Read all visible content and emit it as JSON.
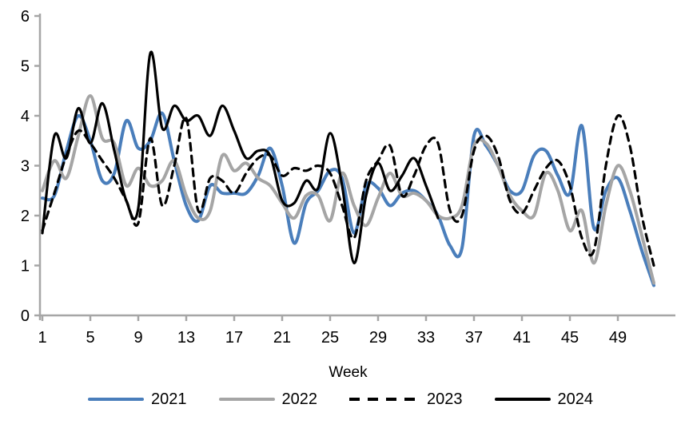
{
  "chart_data": {
    "type": "line",
    "title": "",
    "xlabel": "Week",
    "ylabel": "",
    "xlim": [
      1,
      52
    ],
    "ylim": [
      0,
      6
    ],
    "yticks": [
      0,
      1,
      2,
      3,
      4,
      5,
      6
    ],
    "xticks": [
      1,
      5,
      9,
      13,
      17,
      21,
      25,
      29,
      33,
      37,
      41,
      45,
      49
    ],
    "grid": false,
    "legend_position": "bottom",
    "axis_color": "#A6A6A6",
    "text_color": "#000000",
    "series": [
      {
        "name": "2021",
        "color": "#4A7EBB",
        "line_style": "solid",
        "stroke_width": 4,
        "start_week": 1,
        "values": [
          2.35,
          2.4,
          3.3,
          4.0,
          3.5,
          2.7,
          2.85,
          3.9,
          3.35,
          3.5,
          4.05,
          3.1,
          2.2,
          1.9,
          2.6,
          2.45,
          2.45,
          2.45,
          2.8,
          3.35,
          2.6,
          1.45,
          2.25,
          2.5,
          2.9,
          2.75,
          1.65,
          2.6,
          2.55,
          2.2,
          2.45,
          2.5,
          2.3,
          2.0,
          1.4,
          1.35,
          3.6,
          3.4,
          3.0,
          2.5,
          2.5,
          3.2,
          3.3,
          2.8,
          2.45,
          3.8,
          1.75,
          2.5,
          2.75,
          2.1,
          1.3,
          0.6
        ]
      },
      {
        "name": "2022",
        "color": "#A5A5A5",
        "line_style": "solid",
        "stroke_width": 4,
        "start_week": 1,
        "values": [
          2.5,
          3.1,
          2.75,
          3.6,
          4.4,
          3.55,
          3.45,
          2.6,
          2.95,
          2.6,
          2.7,
          3.1,
          2.4,
          1.95,
          2.1,
          3.2,
          2.9,
          3.05,
          2.75,
          2.6,
          2.25,
          1.95,
          2.4,
          2.4,
          1.9,
          2.85,
          2.2,
          1.8,
          2.35,
          2.85,
          2.4,
          2.45,
          2.3,
          2.0,
          1.95,
          2.2,
          3.4,
          3.45,
          3.0,
          2.4,
          2.1,
          2.0,
          2.85,
          2.5,
          1.7,
          2.1,
          1.05,
          2.2,
          3.0,
          2.5,
          1.6,
          0.65
        ]
      },
      {
        "name": "2023",
        "color": "#000000",
        "line_style": "dashed",
        "stroke_width": 3.2,
        "start_week": 1,
        "values": [
          1.7,
          2.45,
          3.2,
          3.7,
          3.45,
          3.1,
          2.75,
          2.3,
          1.85,
          3.55,
          2.2,
          3.0,
          3.95,
          2.1,
          2.75,
          2.7,
          2.45,
          2.85,
          3.15,
          3.2,
          2.8,
          2.95,
          2.9,
          3.0,
          2.85,
          2.2,
          1.55,
          2.7,
          3.1,
          3.4,
          2.4,
          2.8,
          3.4,
          3.45,
          2.1,
          2.0,
          3.3,
          3.6,
          3.2,
          2.3,
          2.05,
          2.5,
          2.95,
          3.1,
          2.6,
          1.55,
          1.3,
          3.0,
          4.0,
          3.4,
          2.0,
          1.0
        ]
      },
      {
        "name": "2024",
        "color": "#000000",
        "line_style": "solid",
        "stroke_width": 3.2,
        "start_week": 1,
        "values": [
          1.65,
          3.6,
          3.15,
          4.15,
          3.45,
          4.25,
          3.3,
          2.3,
          2.15,
          5.25,
          3.75,
          4.2,
          3.9,
          4.0,
          3.6,
          4.2,
          3.7,
          3.15,
          3.3,
          3.2,
          2.3,
          2.25,
          2.7,
          2.55,
          3.65,
          2.6,
          1.05,
          2.4,
          3.05,
          2.5,
          2.8,
          3.15,
          2.6,
          1.95
        ]
      }
    ]
  },
  "legend": {
    "items": [
      "2021",
      "2022",
      "2023",
      "2024"
    ]
  }
}
